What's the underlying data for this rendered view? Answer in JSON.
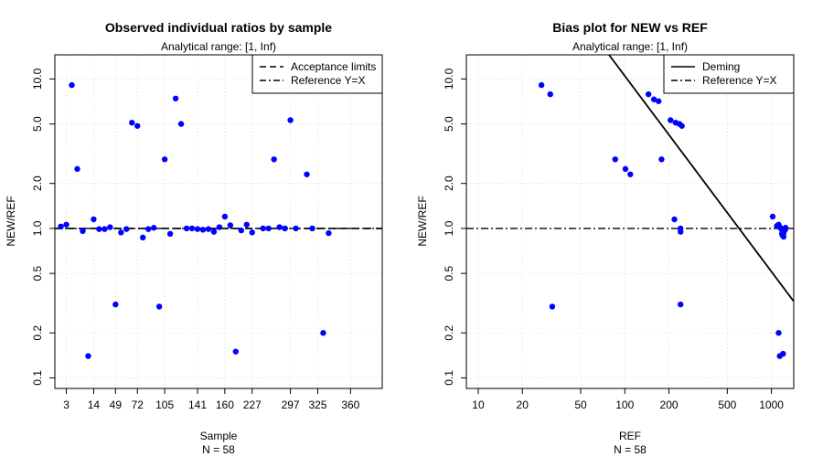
{
  "chart_data": [
    {
      "type": "scatter",
      "title": "Observed individual ratios by sample",
      "subtitle": "Analytical range: [1, Inf)",
      "xlabel": "Sample",
      "xlabel_note": "N = 58",
      "ylabel": "NEW/REF",
      "y_scale": "log",
      "ylim": [
        0.085,
        14.5
      ],
      "y_ticks": [
        "0.1",
        "0.2",
        "0.5",
        "1.0",
        "2.0",
        "5.0",
        "10.0"
      ],
      "y_tick_values": [
        0.1,
        0.2,
        0.5,
        1.0,
        2.0,
        5.0,
        10.0
      ],
      "x_ticks": [
        "3",
        "14",
        "49",
        "72",
        "105",
        "141",
        "160",
        "227",
        "297",
        "325",
        "360"
      ],
      "x_tick_positions": [
        1,
        6,
        10,
        14,
        19,
        25,
        30,
        35,
        42,
        47,
        53
      ],
      "x_range": [
        -1.1,
        58.8
      ],
      "grid": true,
      "point_color": "#0000ff",
      "legend_position": "top-right",
      "legend": [
        {
          "label": "Acceptance limits",
          "dash": "long"
        },
        {
          "label": "Reference Y=X",
          "dash": "dotdash"
        }
      ],
      "reference_line": {
        "y": 1.0
      },
      "acceptance_limits": {
        "lower": 1.0,
        "upper": 1.0
      },
      "points": [
        {
          "x": 0,
          "y": 1.03
        },
        {
          "x": 1,
          "y": 1.06
        },
        {
          "x": 2,
          "y": 9.1
        },
        {
          "x": 3,
          "y": 2.5
        },
        {
          "x": 4,
          "y": 0.96
        },
        {
          "x": 5,
          "y": 0.14
        },
        {
          "x": 6,
          "y": 1.15
        },
        {
          "x": 7,
          "y": 0.99
        },
        {
          "x": 8,
          "y": 0.99
        },
        {
          "x": 9,
          "y": 1.02
        },
        {
          "x": 10,
          "y": 0.31
        },
        {
          "x": 11,
          "y": 0.94
        },
        {
          "x": 12,
          "y": 0.99
        },
        {
          "x": 13,
          "y": 5.1
        },
        {
          "x": 14,
          "y": 4.85
        },
        {
          "x": 15,
          "y": 0.87
        },
        {
          "x": 16,
          "y": 0.99
        },
        {
          "x": 17,
          "y": 1.01
        },
        {
          "x": 18,
          "y": 0.3
        },
        {
          "x": 19,
          "y": 2.9
        },
        {
          "x": 20,
          "y": 0.92
        },
        {
          "x": 21,
          "y": 7.4
        },
        {
          "x": 22,
          "y": 5.0
        },
        {
          "x": 23,
          "y": 1.0
        },
        {
          "x": 24,
          "y": 1.0
        },
        {
          "x": 25,
          "y": 0.99
        },
        {
          "x": 26,
          "y": 0.98
        },
        {
          "x": 27,
          "y": 0.99
        },
        {
          "x": 28,
          "y": 0.95
        },
        {
          "x": 29,
          "y": 1.02
        },
        {
          "x": 30,
          "y": 1.2
        },
        {
          "x": 31,
          "y": 1.05
        },
        {
          "x": 32,
          "y": 0.15
        },
        {
          "x": 33,
          "y": 0.97
        },
        {
          "x": 34,
          "y": 1.06
        },
        {
          "x": 35,
          "y": 0.94
        },
        {
          "x": 37,
          "y": 1.0
        },
        {
          "x": 38,
          "y": 1.0
        },
        {
          "x": 39,
          "y": 2.9
        },
        {
          "x": 40,
          "y": 1.02
        },
        {
          "x": 41,
          "y": 1.0
        },
        {
          "x": 42,
          "y": 5.3
        },
        {
          "x": 43,
          "y": 1.0
        },
        {
          "x": 45,
          "y": 2.3
        },
        {
          "x": 46,
          "y": 1.0
        },
        {
          "x": 48,
          "y": 0.2
        },
        {
          "x": 49,
          "y": 0.93
        }
      ]
    },
    {
      "type": "scatter",
      "title": "Bias plot for NEW vs REF",
      "subtitle": "Analytical range: [1, Inf)",
      "xlabel": "REF",
      "xlabel_note": "N = 58",
      "ylabel": "NEW/REF",
      "x_scale": "log",
      "y_scale": "log",
      "xlim": [
        8.3,
        1420
      ],
      "ylim": [
        0.085,
        14.5
      ],
      "x_ticks": [
        "10",
        "20",
        "50",
        "100",
        "200",
        "500",
        "1000"
      ],
      "x_tick_values": [
        10,
        20,
        50,
        100,
        200,
        500,
        1000
      ],
      "y_ticks": [
        "0.1",
        "0.2",
        "0.5",
        "1.0",
        "2.0",
        "5.0",
        "10.0"
      ],
      "y_tick_values": [
        0.1,
        0.2,
        0.5,
        1.0,
        2.0,
        5.0,
        10.0
      ],
      "grid": true,
      "point_color": "#0000ff",
      "legend_position": "top-right",
      "legend": [
        {
          "label": "Deming",
          "dash": "solid"
        },
        {
          "label": "Reference Y=X",
          "dash": "dotdash"
        }
      ],
      "reference_line": {
        "y": 1.0
      },
      "deming_line": [
        {
          "x": 78,
          "y": 14.5
        },
        {
          "x": 1420,
          "y": 0.325
        }
      ],
      "points": [
        {
          "x": 27,
          "y": 9.1
        },
        {
          "x": 31,
          "y": 7.9
        },
        {
          "x": 32,
          "y": 0.3
        },
        {
          "x": 86,
          "y": 2.9
        },
        {
          "x": 101,
          "y": 2.5
        },
        {
          "x": 109,
          "y": 2.3
        },
        {
          "x": 145,
          "y": 7.9
        },
        {
          "x": 158,
          "y": 7.3
        },
        {
          "x": 170,
          "y": 7.1
        },
        {
          "x": 178,
          "y": 2.9
        },
        {
          "x": 205,
          "y": 5.3
        },
        {
          "x": 222,
          "y": 5.1
        },
        {
          "x": 236,
          "y": 5.0
        },
        {
          "x": 245,
          "y": 4.85
        },
        {
          "x": 218,
          "y": 1.15
        },
        {
          "x": 240,
          "y": 1.0
        },
        {
          "x": 240,
          "y": 0.95
        },
        {
          "x": 240,
          "y": 0.31
        },
        {
          "x": 1020,
          "y": 1.2
        },
        {
          "x": 1090,
          "y": 1.04
        },
        {
          "x": 1120,
          "y": 1.06
        },
        {
          "x": 1140,
          "y": 1.02
        },
        {
          "x": 1160,
          "y": 1.0
        },
        {
          "x": 1175,
          "y": 0.99
        },
        {
          "x": 1190,
          "y": 0.97
        },
        {
          "x": 1200,
          "y": 0.95
        },
        {
          "x": 1210,
          "y": 0.93
        },
        {
          "x": 1220,
          "y": 0.99
        },
        {
          "x": 1230,
          "y": 1.0
        },
        {
          "x": 1240,
          "y": 0.98
        },
        {
          "x": 1250,
          "y": 1.01
        },
        {
          "x": 1190,
          "y": 0.9
        },
        {
          "x": 1210,
          "y": 0.88
        },
        {
          "x": 1180,
          "y": 0.92
        },
        {
          "x": 1120,
          "y": 0.2
        },
        {
          "x": 1140,
          "y": 0.14
        },
        {
          "x": 1200,
          "y": 0.145
        }
      ]
    }
  ]
}
